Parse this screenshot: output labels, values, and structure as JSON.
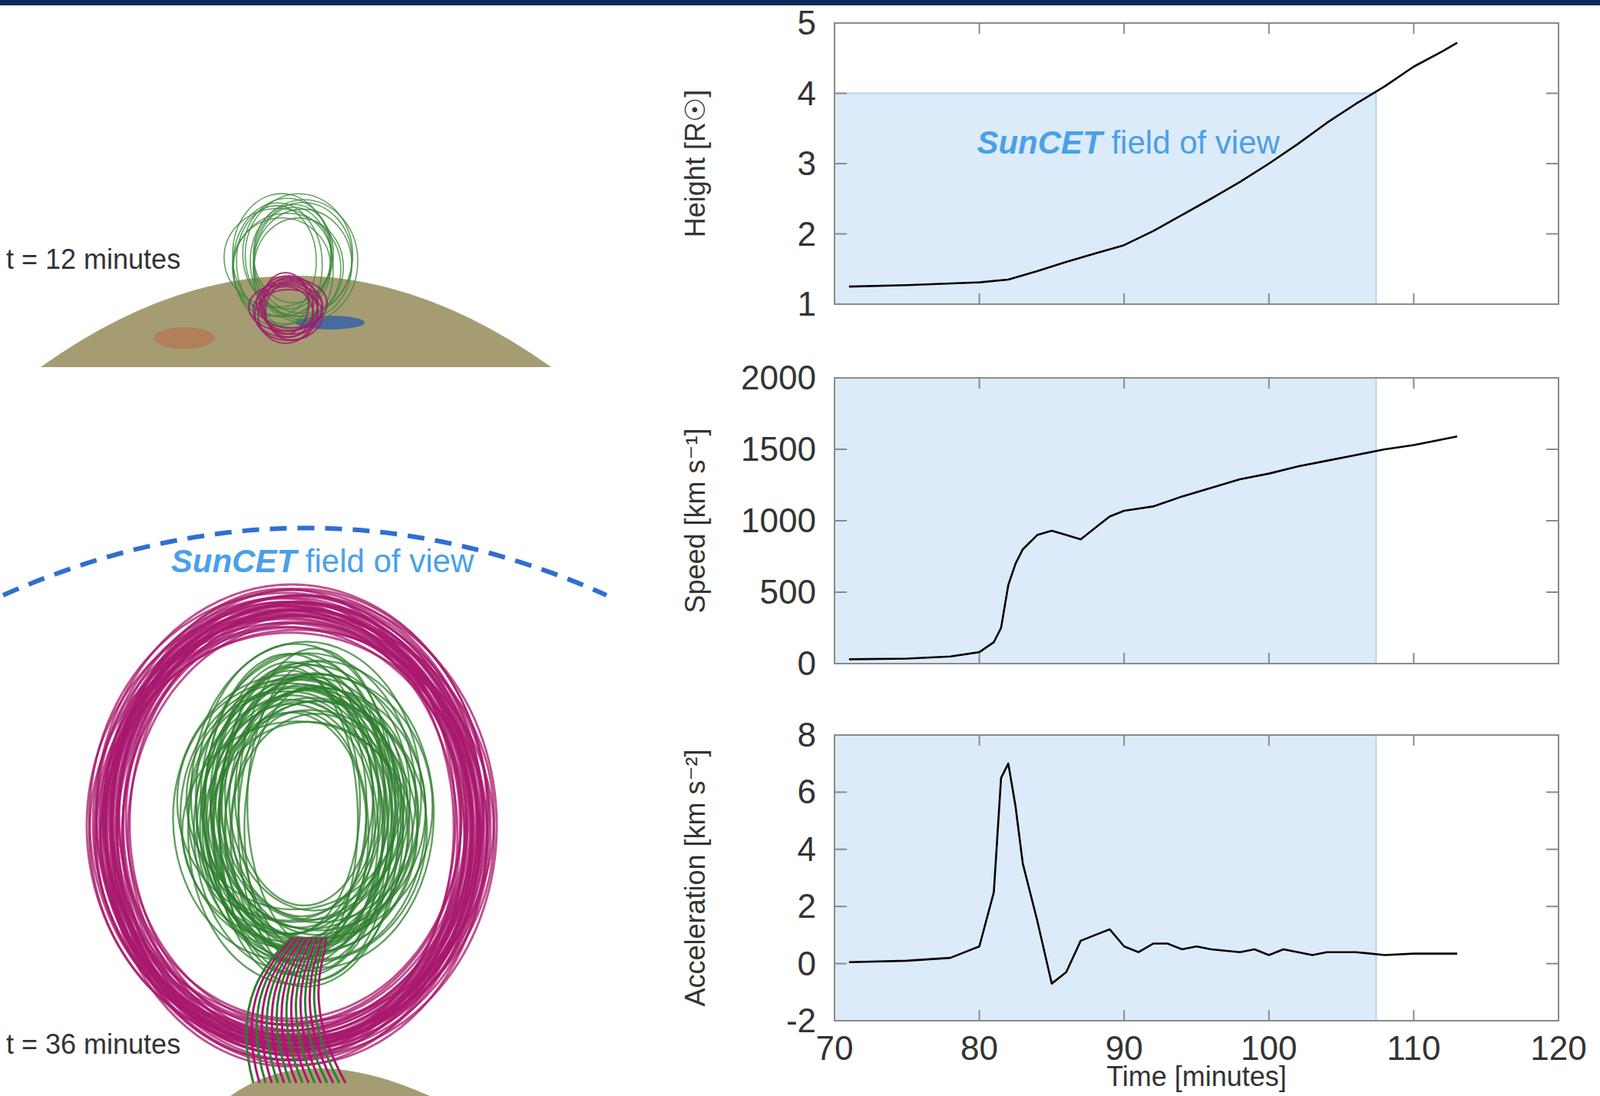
{
  "illustration": {
    "snapshots": [
      {
        "label": "t = 12 minutes"
      },
      {
        "label": "t = 36 minutes"
      }
    ],
    "field_of_view_label": "SunCET field of view"
  },
  "chart_data": [
    {
      "type": "line",
      "y_label": "Height [R☉]",
      "xlim": [
        70,
        120
      ],
      "xticks": [
        70,
        80,
        90,
        100,
        110,
        120
      ],
      "ylim": [
        1,
        5
      ],
      "yticks": [
        1,
        2,
        3,
        4,
        5
      ],
      "tick_labels": "y",
      "color": "#000000",
      "shaded_region": {
        "label": "SunCET field of view",
        "x": [
          70,
          107.4
        ],
        "y": [
          1,
          4
        ]
      },
      "x": [
        71,
        75,
        80,
        82,
        84,
        86,
        88,
        90,
        92,
        94,
        96,
        98,
        100,
        102,
        104,
        106,
        108,
        110,
        112,
        113
      ],
      "values": [
        1.25,
        1.27,
        1.31,
        1.35,
        1.47,
        1.6,
        1.72,
        1.84,
        2.04,
        2.27,
        2.5,
        2.74,
        3.0,
        3.28,
        3.58,
        3.85,
        4.1,
        4.38,
        4.6,
        4.72
      ]
    },
    {
      "type": "line",
      "y_label": "Speed [km s⁻¹]",
      "xlim": [
        70,
        120
      ],
      "xticks": [
        70,
        80,
        90,
        100,
        110,
        120
      ],
      "ylim": [
        0,
        2000
      ],
      "yticks": [
        0,
        500,
        1000,
        1500,
        2000
      ],
      "tick_labels": "y",
      "color": "#000000",
      "shaded_region": {
        "x": [
          70,
          107.4
        ]
      },
      "x": [
        71,
        75,
        78,
        80,
        81,
        81.5,
        82,
        82.5,
        83,
        84,
        85,
        86,
        87,
        88,
        89,
        90,
        92,
        94,
        96,
        98,
        100,
        102,
        104,
        106,
        108,
        110,
        112,
        113
      ],
      "values": [
        30,
        35,
        50,
        80,
        150,
        250,
        550,
        700,
        800,
        900,
        930,
        900,
        870,
        950,
        1030,
        1070,
        1100,
        1170,
        1230,
        1290,
        1330,
        1380,
        1420,
        1460,
        1500,
        1530,
        1570,
        1590
      ]
    },
    {
      "type": "line",
      "y_label": "Acceleration [km s⁻²]",
      "x_label": "Time [minutes]",
      "xlim": [
        70,
        120
      ],
      "xticks": [
        70,
        80,
        90,
        100,
        110,
        120
      ],
      "ylim": [
        -2,
        8
      ],
      "yticks": [
        -2,
        0,
        2,
        4,
        6,
        8
      ],
      "color": "#000000",
      "shaded_region": {
        "x": [
          70,
          107.4
        ]
      },
      "x": [
        71,
        75,
        78,
        80,
        81,
        81.5,
        82,
        82.5,
        83,
        84,
        85,
        86,
        87,
        88,
        89,
        90,
        91,
        92,
        93,
        94,
        95,
        96,
        98,
        99,
        100,
        101,
        102,
        103,
        104,
        106,
        108,
        110,
        113
      ],
      "values": [
        0.05,
        0.1,
        0.2,
        0.6,
        2.5,
        6.5,
        7.0,
        5.5,
        3.5,
        1.5,
        -0.7,
        -0.3,
        0.8,
        1.0,
        1.2,
        0.6,
        0.4,
        0.7,
        0.7,
        0.5,
        0.6,
        0.5,
        0.4,
        0.5,
        0.3,
        0.5,
        0.4,
        0.3,
        0.4,
        0.4,
        0.3,
        0.35,
        0.35
      ]
    }
  ]
}
